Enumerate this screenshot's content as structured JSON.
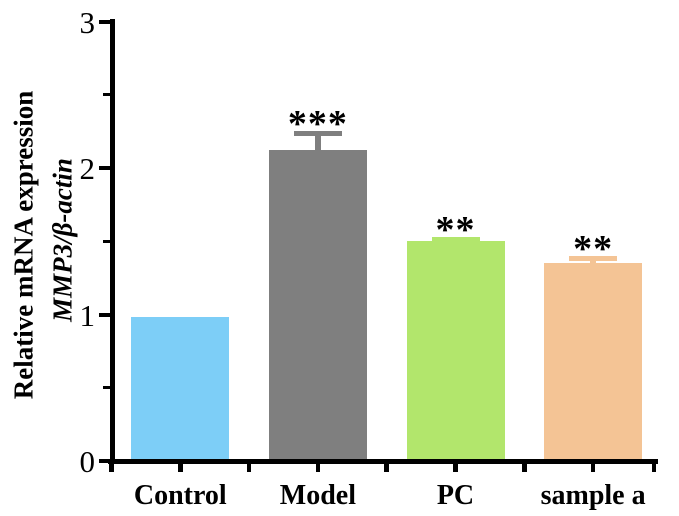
{
  "figure": {
    "background": "#FFFFFF"
  },
  "chart_data": {
    "type": "bar",
    "categories": [
      "Control",
      "Model",
      "PC",
      "sample a"
    ],
    "values": [
      0.98,
      2.12,
      1.5,
      1.35
    ],
    "errors": [
      0,
      0.13,
      0.03,
      0.05
    ],
    "significance": [
      "",
      "***",
      "**",
      "**"
    ],
    "bar_colors": [
      "#7DCEF7",
      "#7F7F7F",
      "#B2E66C",
      "#F4C495"
    ],
    "title": "",
    "xlabel": "",
    "ylabel_line1": "Relative mRNA expression",
    "ylabel_line2": "MMP3/β-actin",
    "ylim": [
      0,
      3
    ],
    "yticks": [
      0,
      1,
      2,
      3
    ],
    "minor_yticks": [
      0.5,
      1.5,
      2.5
    ],
    "grid": false,
    "legend": "none",
    "axis_color": "#000000",
    "error_bar_note": "upper error bar only, cap colored same as bar"
  }
}
